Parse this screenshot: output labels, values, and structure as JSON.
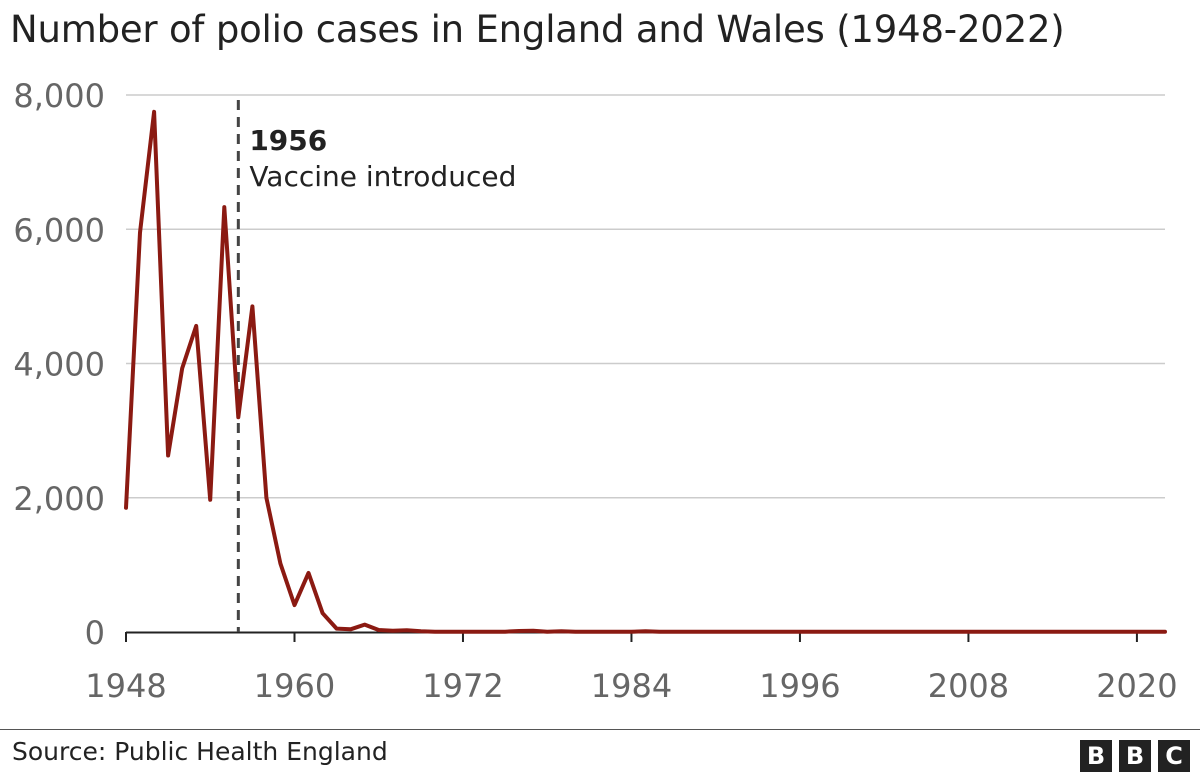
{
  "title": "Number of polio cases in England and Wales (1948-2022)",
  "source": "Source: Public Health England",
  "logo": [
    "B",
    "B",
    "C"
  ],
  "colors": {
    "line": "#8b1a12",
    "grid": "#cccccc",
    "axis": "#222222",
    "tick_text": "#666666",
    "annotation_line": "#444444"
  },
  "chart_data": {
    "type": "line",
    "title": "Number of polio cases in England and Wales (1948-2022)",
    "xlabel": "",
    "ylabel": "",
    "xlim": [
      1948,
      2022
    ],
    "ylim": [
      0,
      8000
    ],
    "x_ticks": [
      1948,
      1960,
      1972,
      1984,
      1996,
      2008,
      2020
    ],
    "x_tick_labels": [
      "1948",
      "1960",
      "1972",
      "1984",
      "1996",
      "2008",
      "2020"
    ],
    "y_ticks": [
      0,
      2000,
      4000,
      6000,
      8000
    ],
    "y_tick_labels": [
      "0",
      "2,000",
      "4,000",
      "6,000",
      "8,000"
    ],
    "grid": true,
    "series": [
      {
        "x": [
          1948,
          1949,
          1950,
          1951,
          1952,
          1953,
          1954,
          1955,
          1956,
          1957,
          1958,
          1959,
          1960,
          1961,
          1962,
          1963,
          1964,
          1965,
          1966,
          1967,
          1968,
          1969,
          1970,
          1971,
          1972,
          1973,
          1974,
          1975,
          1976,
          1977,
          1978,
          1979,
          1980,
          1981,
          1982,
          1983,
          1984,
          1985,
          1986,
          1987,
          1988,
          1989,
          1990,
          1991,
          1992,
          1993,
          1994,
          1995,
          1996,
          1997,
          1998,
          1999,
          2000,
          2001,
          2002,
          2003,
          2004,
          2005,
          2006,
          2007,
          2008,
          2009,
          2010,
          2011,
          2012,
          2013,
          2014,
          2015,
          2016,
          2017,
          2018,
          2019,
          2020,
          2021,
          2022
        ],
        "values": [
          1850,
          5950,
          7750,
          2630,
          3930,
          4560,
          1970,
          6330,
          3200,
          4850,
          2000,
          1020,
          400,
          880,
          280,
          50,
          40,
          110,
          30,
          20,
          25,
          10,
          5,
          5,
          5,
          5,
          5,
          5,
          15,
          20,
          5,
          10,
          5,
          5,
          5,
          5,
          5,
          10,
          5,
          5,
          5,
          5,
          5,
          5,
          5,
          5,
          5,
          5,
          5,
          5,
          5,
          5,
          5,
          5,
          5,
          5,
          5,
          5,
          5,
          5,
          5,
          5,
          5,
          5,
          5,
          5,
          5,
          5,
          5,
          5,
          5,
          5,
          5,
          5,
          5
        ]
      }
    ],
    "annotations": [
      {
        "x": 1956,
        "year_label": "1956",
        "text": "Vaccine introduced"
      }
    ]
  }
}
